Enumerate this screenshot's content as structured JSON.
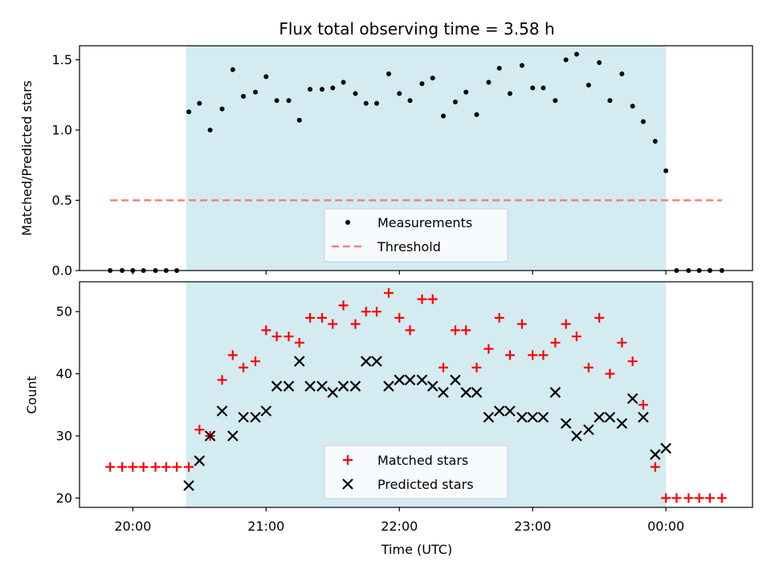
{
  "chart_data": [
    {
      "type": "scatter",
      "title": "Flux total observing time = 3.58 h",
      "ylabel": "Matched/Predicted stars",
      "xlabel": "",
      "ylim": [
        0,
        1.6
      ],
      "y_ticks": [
        "0.0",
        "0.5",
        "1.0",
        "1.5"
      ],
      "y_tick_values": [
        0.0,
        0.5,
        1.0,
        1.5
      ],
      "grid": false,
      "observing_window_hours": [
        20.4,
        24.0
      ],
      "shade_color": "#d4ebf2",
      "legend_position": "lower-center",
      "series": [
        {
          "name": "Measurements",
          "marker": "dot",
          "color": "#000000",
          "x": [
            19.83,
            19.92,
            20.0,
            20.08,
            20.17,
            20.25,
            20.33,
            20.42,
            20.5,
            20.58,
            20.67,
            20.75,
            20.83,
            20.92,
            21.0,
            21.08,
            21.17,
            21.25,
            21.33,
            21.42,
            21.5,
            21.58,
            21.67,
            21.75,
            21.83,
            21.92,
            22.0,
            22.08,
            22.17,
            22.25,
            22.33,
            22.42,
            22.5,
            22.58,
            22.67,
            22.75,
            22.83,
            22.92,
            23.0,
            23.08,
            23.17,
            23.25,
            23.33,
            23.42,
            23.5,
            23.58,
            23.67,
            23.75,
            23.83,
            23.92,
            24.0,
            24.08,
            24.17,
            24.25,
            24.33,
            24.42
          ],
          "y": [
            0,
            0,
            0,
            0,
            0,
            0,
            0,
            1.13,
            1.19,
            1.0,
            1.15,
            1.43,
            1.24,
            1.27,
            1.38,
            1.21,
            1.21,
            1.07,
            1.29,
            1.29,
            1.3,
            1.34,
            1.26,
            1.19,
            1.19,
            1.4,
            1.26,
            1.21,
            1.33,
            1.37,
            1.1,
            1.2,
            1.27,
            1.11,
            1.34,
            1.44,
            1.26,
            1.46,
            1.3,
            1.3,
            1.21,
            1.5,
            1.54,
            1.32,
            1.48,
            1.21,
            1.4,
            1.17,
            1.06,
            0.92,
            0.71,
            0,
            0,
            0,
            0,
            0
          ]
        },
        {
          "name": "Threshold",
          "marker": "dashed-line",
          "color": "#f08080",
          "x": [
            19.83,
            24.42
          ],
          "y": [
            0.5,
            0.5
          ]
        }
      ]
    },
    {
      "type": "scatter",
      "title": "",
      "ylabel": "Count",
      "xlabel": "Time (UTC)",
      "ylim": [
        18.5,
        54.8
      ],
      "y_ticks": [
        "20",
        "30",
        "40",
        "50"
      ],
      "y_tick_values": [
        20,
        30,
        40,
        50
      ],
      "x_ticks": [
        "20:00",
        "21:00",
        "22:00",
        "23:00",
        "00:00"
      ],
      "x_tick_values": [
        20,
        21,
        22,
        23,
        24
      ],
      "grid": false,
      "observing_window_hours": [
        20.4,
        24.0
      ],
      "shade_color": "#d4ebf2",
      "legend_position": "lower-center",
      "series": [
        {
          "name": "Matched stars",
          "marker": "plus",
          "color": "#ff0000",
          "x": [
            19.83,
            19.92,
            20.0,
            20.08,
            20.17,
            20.25,
            20.33,
            20.42,
            20.5,
            20.58,
            20.67,
            20.75,
            20.83,
            20.92,
            21.0,
            21.08,
            21.17,
            21.25,
            21.33,
            21.42,
            21.5,
            21.58,
            21.67,
            21.75,
            21.83,
            21.92,
            22.0,
            22.08,
            22.17,
            22.25,
            22.33,
            22.42,
            22.5,
            22.58,
            22.67,
            22.75,
            22.83,
            22.92,
            23.0,
            23.08,
            23.17,
            23.25,
            23.33,
            23.42,
            23.5,
            23.58,
            23.67,
            23.75,
            23.83,
            23.92,
            24.0,
            24.08,
            24.17,
            24.25,
            24.33,
            24.42
          ],
          "y": [
            25,
            25,
            25,
            25,
            25,
            25,
            25,
            25,
            31,
            30,
            39,
            43,
            41,
            42,
            47,
            46,
            46,
            45,
            49,
            49,
            48,
            51,
            48,
            50,
            50,
            53,
            49,
            47,
            52,
            52,
            41,
            47,
            47,
            41,
            44,
            49,
            43,
            48,
            43,
            43,
            45,
            48,
            46,
            41,
            49,
            40,
            45,
            42,
            35,
            25,
            20,
            20,
            20,
            20,
            20,
            20
          ]
        },
        {
          "name": "Predicted stars",
          "marker": "x",
          "color": "#000000",
          "x": [
            20.42,
            20.5,
            20.58,
            20.67,
            20.75,
            20.83,
            20.92,
            21.0,
            21.08,
            21.17,
            21.25,
            21.33,
            21.42,
            21.5,
            21.58,
            21.67,
            21.75,
            21.83,
            21.92,
            22.0,
            22.08,
            22.17,
            22.25,
            22.33,
            22.42,
            22.5,
            22.58,
            22.67,
            22.75,
            22.83,
            22.92,
            23.0,
            23.08,
            23.17,
            23.25,
            23.33,
            23.42,
            23.5,
            23.58,
            23.67,
            23.75,
            23.83,
            23.92,
            24.0
          ],
          "y": [
            22,
            26,
            30,
            34,
            30,
            33,
            33,
            34,
            38,
            38,
            42,
            38,
            38,
            37,
            38,
            38,
            42,
            42,
            38,
            39,
            39,
            39,
            38,
            37,
            39,
            37,
            37,
            33,
            34,
            34,
            33,
            33,
            33,
            37,
            32,
            30,
            31,
            33,
            33,
            32,
            36,
            33,
            27,
            28
          ]
        }
      ]
    }
  ]
}
